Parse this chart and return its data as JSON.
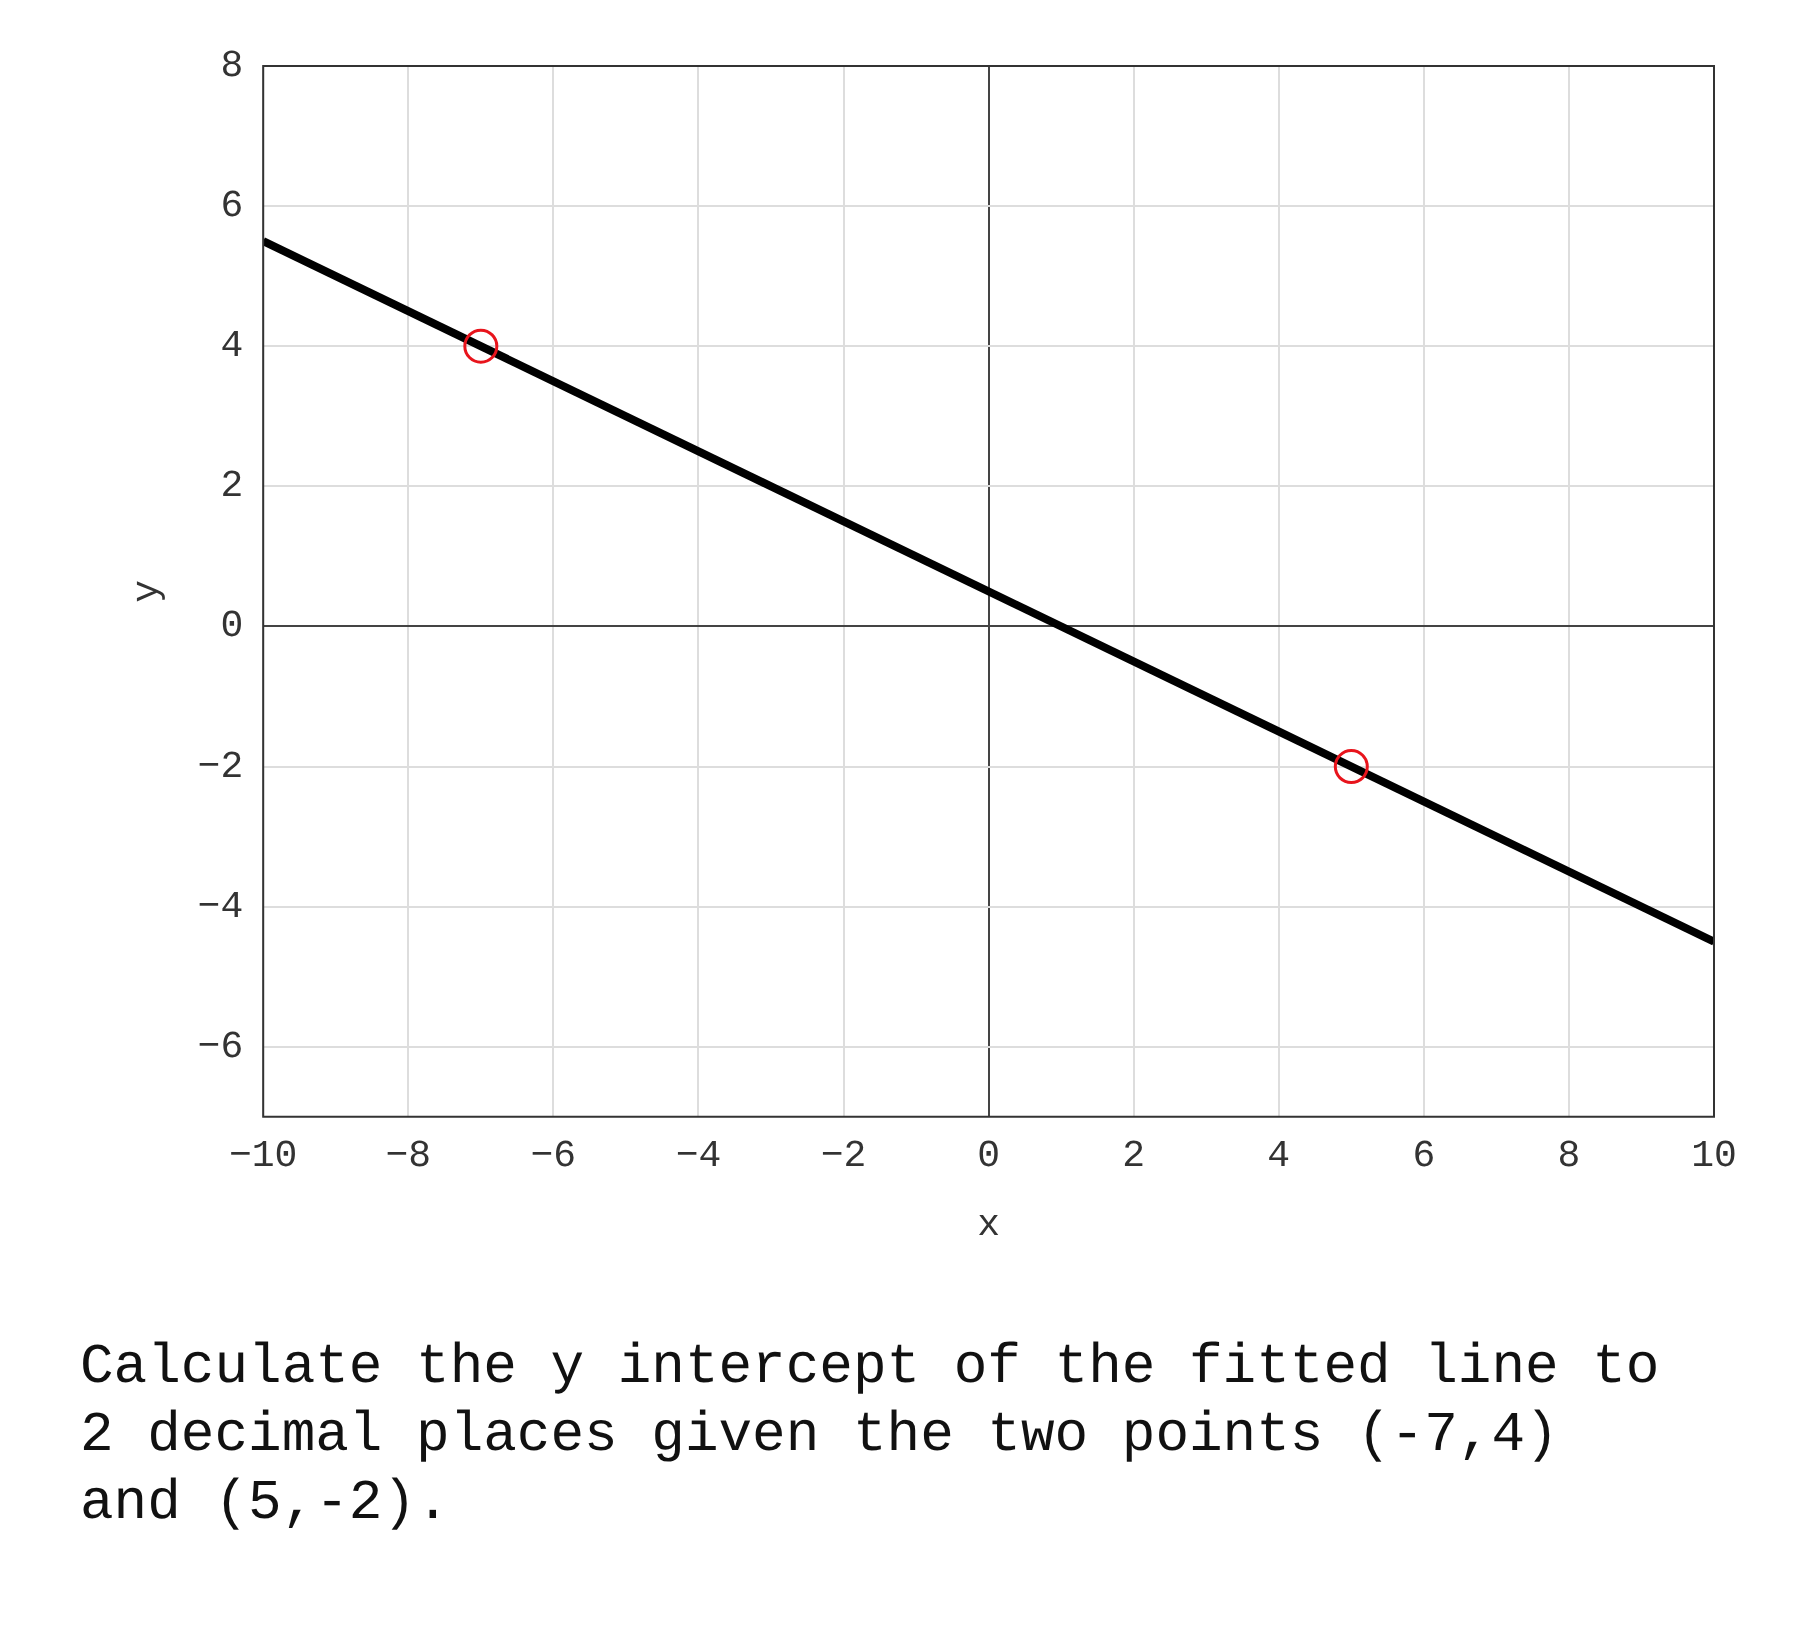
{
  "chart_data": {
    "type": "scatter",
    "xlabel": "x",
    "ylabel": "y",
    "xlim": [
      -10,
      10
    ],
    "xticks": [
      -10,
      -8,
      -6,
      -4,
      -2,
      0,
      2,
      4,
      6,
      8,
      10
    ],
    "ylim": [
      -7,
      8
    ],
    "yticks": [
      -6,
      -4,
      -2,
      0,
      2,
      4,
      6,
      8
    ],
    "grid": true,
    "legend": false,
    "series": [
      {
        "type": "line",
        "color": "#000000",
        "x": [
          -10,
          10
        ],
        "values": [
          5.5,
          -4.5
        ],
        "marker": "none",
        "line_style": "solid"
      },
      {
        "type": "scatter",
        "color": "#e8141c",
        "x": [
          -7,
          5
        ],
        "values": [
          4,
          -2
        ],
        "marker": "circle"
      }
    ],
    "annotations": [
      "Calculate the y intercept of the fitted line to 2 decimal places given the two points (-7,4) and (5,-2)."
    ]
  }
}
